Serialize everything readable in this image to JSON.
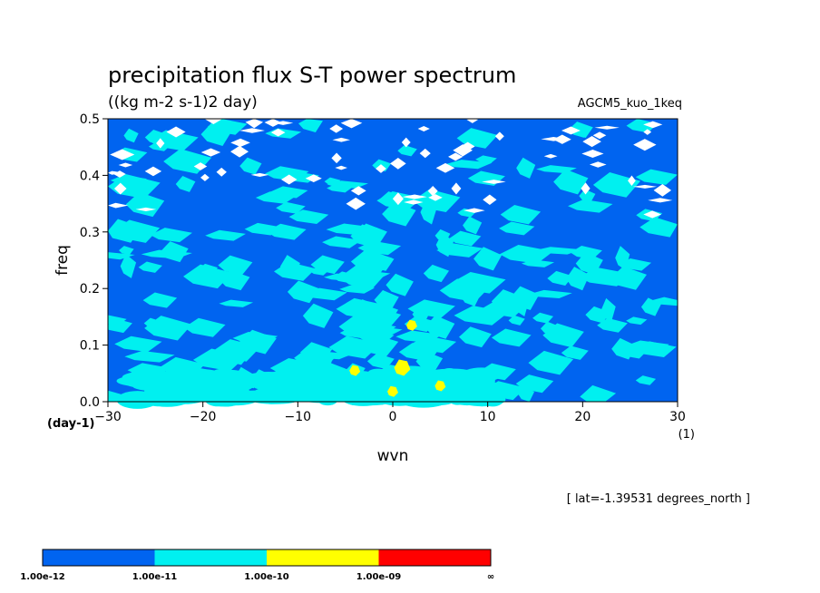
{
  "chart_data": {
    "type": "heatmap",
    "title": "precipitation flux S-T power spectrum",
    "subtitle": "((kg m-2 s-1)2 day)",
    "model_label": "AGCM5_kuo_1keq",
    "xlabel": "wvn",
    "ylabel": "freq",
    "x_unit": "(1)",
    "y_unit": "(day-1)",
    "xlim": [
      -30,
      30
    ],
    "ylim": [
      0,
      0.5
    ],
    "x_ticks": [
      "−30",
      "−20",
      "−10",
      "0",
      "10",
      "20",
      "30"
    ],
    "x_tick_values": [
      -30,
      -20,
      -10,
      0,
      10,
      20,
      30
    ],
    "y_ticks": [
      "0.0",
      "0.1",
      "0.2",
      "0.3",
      "0.4",
      "0.5"
    ],
    "y_tick_values": [
      0,
      0.1,
      0.2,
      0.3,
      0.4,
      0.5
    ],
    "annotation": "[ lat=-1.39531 degrees_north ]",
    "levels": [
      "1.00e-12",
      "1.00e-11",
      "1.00e-10",
      "1.00e-09",
      "∞"
    ],
    "level_colors": [
      "#0064f0",
      "#00f0f0",
      "#ffff00",
      "#ff0000"
    ],
    "below_color": "#ffffff",
    "features": [
      {
        "wvn": 1,
        "freq": 0.06,
        "level": 2
      },
      {
        "wvn": 2,
        "freq": 0.135,
        "level": 2
      },
      {
        "wvn": 5,
        "freq": 0.028,
        "level": 2
      },
      {
        "wvn": 0,
        "freq": 0.018,
        "level": 2
      },
      {
        "wvn": -4,
        "freq": 0.055,
        "level": 2
      }
    ]
  }
}
